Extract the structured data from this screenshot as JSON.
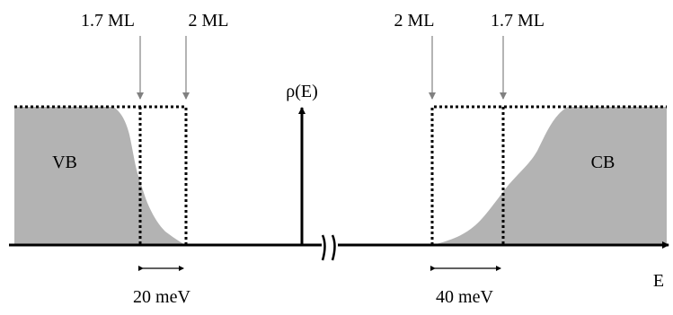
{
  "diagram": {
    "labels": {
      "vb_left_thickness": "1.7 ML",
      "vb_right_thickness": "2 ML",
      "cb_left_thickness": "2 ML",
      "cb_right_thickness": "1.7 ML",
      "dos_axis": "ρ(E)",
      "valence_band": "VB",
      "conduction_band": "CB",
      "energy_axis": "E",
      "vb_shift": "20 meV",
      "cb_shift": "40 meV"
    },
    "colors": {
      "band_fill": "#b3b3b3",
      "ink": "#000000",
      "pointer": "#9a9a9a"
    }
  }
}
